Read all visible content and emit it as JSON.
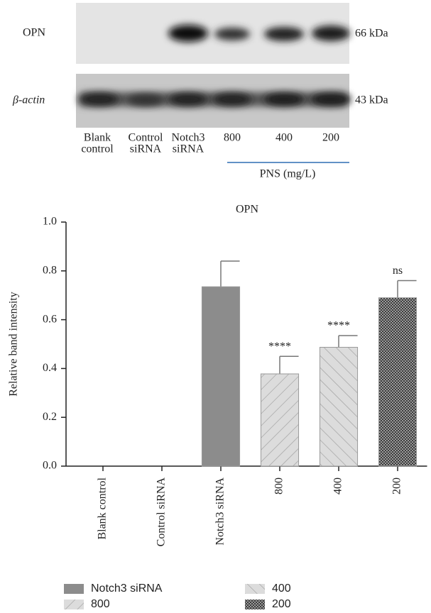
{
  "blot": {
    "rows": [
      {
        "label": "OPN",
        "size": "66 kDa"
      },
      {
        "label": "β-actin",
        "size": "43 kDa"
      }
    ],
    "lanes": [
      [
        "Blank",
        "control"
      ],
      [
        "Control",
        "siRNA"
      ],
      [
        "Notch3",
        "siRNA"
      ],
      [
        "800"
      ],
      [
        "400"
      ],
      [
        "200"
      ]
    ],
    "group_label": "PNS (mg/L)"
  },
  "chart_data": {
    "type": "bar",
    "title": "OPN",
    "ylabel": "Relative band intensity",
    "categories": [
      "Blank control",
      "Control siRNA",
      "Notch3 siRNA",
      "800",
      "400",
      "200"
    ],
    "values": [
      0,
      0,
      0.735,
      0.378,
      0.487,
      0.69
    ],
    "errors": [
      0,
      0,
      0.105,
      0.072,
      0.048,
      0.07
    ],
    "annotations": [
      null,
      null,
      null,
      "****",
      "****",
      "ns"
    ],
    "patterns": [
      null,
      null,
      "solid",
      "forward-hatch",
      "back-hatch",
      "checker"
    ],
    "colors": [
      null,
      null,
      "#8c8c8c",
      "#d9d9d9",
      "#d9d9d9",
      "#555555"
    ],
    "ylim": [
      0,
      1
    ],
    "yticks": [
      {
        "value": 0,
        "label": "0.0"
      },
      0.2,
      0.4,
      0.6,
      0.8,
      {
        "value": 1,
        "label": "1.0"
      }
    ],
    "legend": "bottom"
  }
}
